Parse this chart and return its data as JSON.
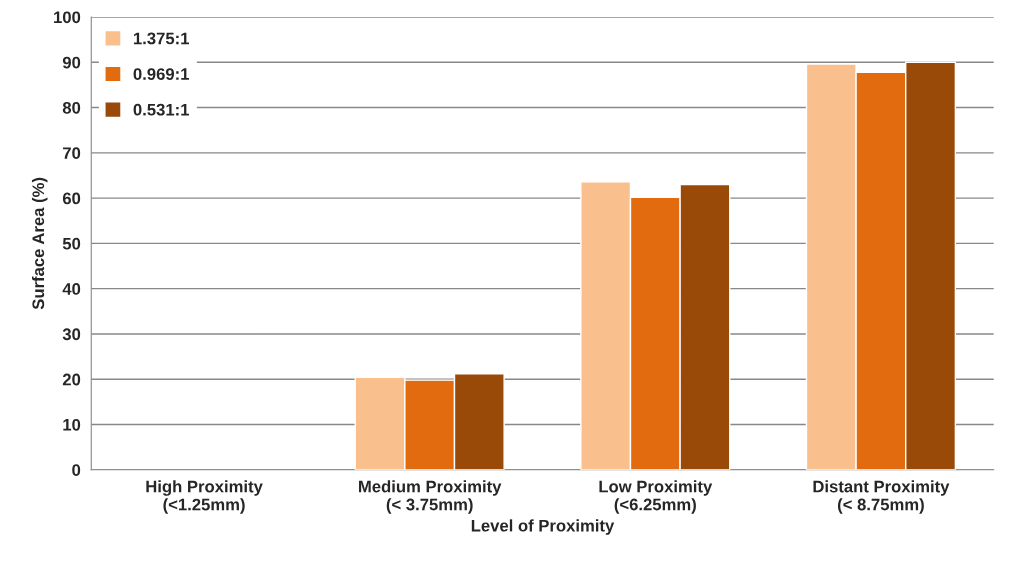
{
  "chart_data": {
    "type": "bar",
    "xlabel": "Level of Proximity",
    "ylabel": "Surface Area (%)",
    "categories": [
      "High Proximity\n(<1.25mm)",
      "Medium Proximity\n(< 3.75mm)",
      "Low Proximity\n(<6.25mm)",
      "Distant Proximity\n(< 8.75mm)"
    ],
    "series": [
      {
        "name": "1.375:1",
        "color": "#f9c08e",
        "values": [
          null,
          20.4,
          63.6,
          89.6
        ]
      },
      {
        "name": "0.969:1",
        "color": "#e26b0f",
        "values": [
          null,
          19.8,
          60.2,
          87.8
        ]
      },
      {
        "name": "0.531:1",
        "color": "#994a08",
        "values": [
          null,
          21.2,
          63.0,
          90.0
        ]
      }
    ],
    "ylim": [
      0,
      100
    ],
    "yticks": [
      0,
      10,
      20,
      30,
      40,
      50,
      60,
      70,
      80,
      90,
      100
    ],
    "grid": "y",
    "legend": "top left"
  }
}
